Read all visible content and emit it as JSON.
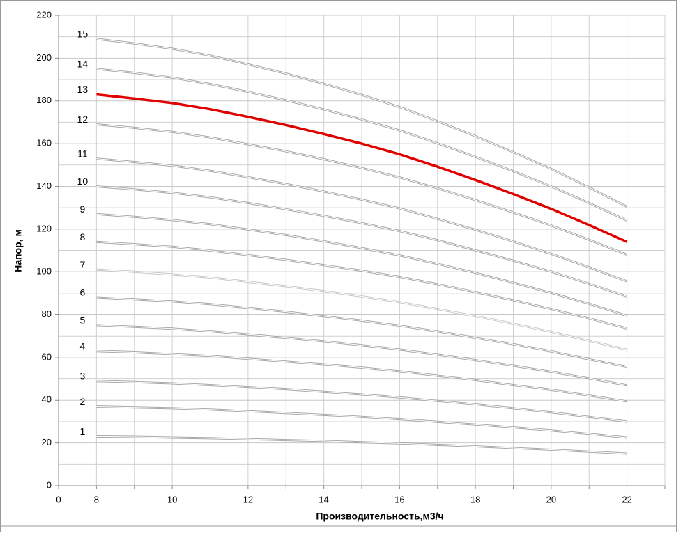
{
  "chart_data": {
    "type": "line",
    "x_label": "Производительность,м3/ч",
    "y_label": "Напор, м",
    "categories": [
      "0",
      "8",
      null,
      "10",
      null,
      "12",
      null,
      "14",
      null,
      "16",
      null,
      "18",
      null,
      "20",
      null,
      "22",
      null
    ],
    "ylim": [
      0,
      220
    ],
    "yticks": [
      0,
      20,
      40,
      60,
      80,
      100,
      120,
      140,
      160,
      180,
      200,
      220
    ],
    "grid": true,
    "series": [
      {
        "name": "1",
        "color": "#a8a8a8",
        "values": [
          null,
          23,
          22.8,
          22.5,
          22.2,
          21.8,
          21.3,
          20.9,
          20.3,
          19.8,
          19.1,
          18.4,
          17.6,
          16.8,
          15.9,
          15,
          null
        ]
      },
      {
        "name": "2",
        "color": "#a8a8a8",
        "values": [
          null,
          37,
          36.6,
          36.2,
          35.6,
          34.8,
          34,
          33.1,
          32.2,
          31.1,
          29.9,
          28.6,
          27.2,
          25.8,
          24.2,
          22.5,
          null
        ]
      },
      {
        "name": "3",
        "color": "#a8a8a8",
        "values": [
          null,
          49,
          48.5,
          47.9,
          47.1,
          46.1,
          45.1,
          43.9,
          42.7,
          41.3,
          39.7,
          38,
          36.2,
          34.3,
          32.2,
          30,
          null
        ]
      },
      {
        "name": "4",
        "color": "#a8a8a8",
        "values": [
          null,
          63,
          62.4,
          61.6,
          60.7,
          59.4,
          58.1,
          56.7,
          55.2,
          53.5,
          51.5,
          49.4,
          47.1,
          44.8,
          42.2,
          39.5,
          null
        ]
      },
      {
        "name": "5",
        "color": "#a8a8a8",
        "values": [
          null,
          75,
          74.2,
          73.4,
          72.2,
          70.7,
          69.2,
          67.5,
          65.6,
          63.6,
          61.3,
          58.8,
          56.1,
          53.3,
          50.2,
          47,
          null
        ]
      },
      {
        "name": "6",
        "color": "#a8a8a8",
        "values": [
          null,
          88,
          87.1,
          86.1,
          84.8,
          83.1,
          81.3,
          79.3,
          77.1,
          74.8,
          72.1,
          69.2,
          66.1,
          62.8,
          59.2,
          55.5,
          null
        ]
      },
      {
        "name": "7",
        "color": "#c8c8c8",
        "values": [
          null,
          101,
          100,
          98.8,
          97.3,
          95.3,
          93.2,
          91,
          88.5,
          85.8,
          82.6,
          79.3,
          75.7,
          71.9,
          67.8,
          63.5,
          null
        ]
      },
      {
        "name": "8",
        "color": "#a8a8a8",
        "values": [
          null,
          114,
          112.9,
          111.7,
          110,
          107.8,
          105.6,
          103.1,
          100.5,
          97.6,
          94.2,
          90.5,
          86.7,
          82.6,
          78.2,
          73.5,
          null
        ]
      },
      {
        "name": "9",
        "color": "#a8a8a8",
        "values": [
          null,
          127,
          125.7,
          124.2,
          122.3,
          119.8,
          117.2,
          114.3,
          111.1,
          107.7,
          103.7,
          99.5,
          94.9,
          90.2,
          85,
          79.5,
          null
        ]
      },
      {
        "name": "10",
        "color": "#a8a8a8",
        "values": [
          null,
          140,
          138.6,
          137,
          134.9,
          132.2,
          129.3,
          126.2,
          122.8,
          119.1,
          114.8,
          110.1,
          105.2,
          100.1,
          94.4,
          88.5,
          null
        ]
      },
      {
        "name": "11",
        "color": "#a8a8a8",
        "values": [
          null,
          153,
          151.4,
          149.7,
          147.3,
          144.3,
          141.1,
          137.6,
          133.8,
          129.7,
          124.8,
          119.7,
          114.2,
          108.4,
          102.1,
          95.5,
          null
        ]
      },
      {
        "name": "12",
        "color": "#a8a8a8",
        "values": [
          null,
          169,
          167.4,
          165.5,
          162.9,
          159.7,
          156.4,
          152.7,
          148.6,
          144.2,
          139.1,
          133.6,
          127.8,
          121.7,
          115,
          108,
          null
        ]
      },
      {
        "name": "13",
        "color": "#e00000",
        "values": [
          null,
          183,
          181.1,
          179,
          176.1,
          172.5,
          168.7,
          164.5,
          160,
          155,
          149.2,
          143,
          136.4,
          129.5,
          121.9,
          114,
          null
        ]
      },
      {
        "name": "14",
        "color": "#a8a8a8",
        "values": [
          null,
          195,
          193.1,
          190.9,
          187.9,
          184.2,
          180.3,
          176,
          171.3,
          166.2,
          160.2,
          153.8,
          147.1,
          140,
          132.2,
          124,
          null
        ]
      },
      {
        "name": "15",
        "color": "#a8a8a8",
        "values": [
          null,
          209,
          206.9,
          204.4,
          201.2,
          197.1,
          192.8,
          188,
          182.8,
          177.1,
          170.5,
          163.5,
          156,
          148.2,
          139.5,
          130.5,
          null
        ]
      }
    ]
  }
}
